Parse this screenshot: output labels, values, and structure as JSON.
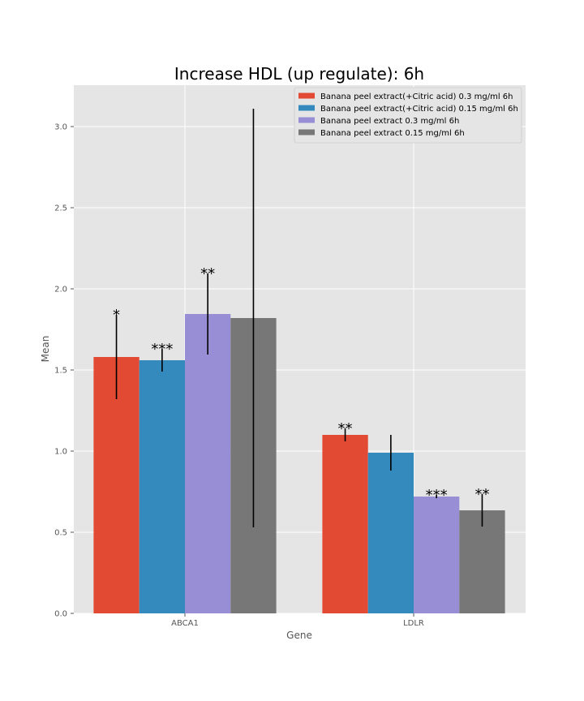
{
  "chart_data": {
    "type": "bar",
    "title": "Increase HDL (up regulate): 6h",
    "xlabel": "Gene",
    "ylabel": "Mean",
    "categories": [
      "ABCA1",
      "LDLR"
    ],
    "ylim": [
      0,
      3.25
    ],
    "yticks": [
      0.0,
      0.5,
      1.0,
      1.5,
      2.0,
      2.5,
      3.0
    ],
    "ytick_labels": [
      "0.0",
      "0.5",
      "1.0",
      "1.5",
      "2.0",
      "2.5",
      "3.0"
    ],
    "grid": true,
    "legend_position": "top-right",
    "series": [
      {
        "name": "Banana peel extract(+Citric acid) 0.3 mg/ml 6h",
        "color": "#E24A33",
        "values": [
          1.58,
          1.1
        ],
        "errors": [
          0.26,
          0.04
        ],
        "significance": [
          "*",
          "**"
        ]
      },
      {
        "name": "Banana peel extract(+Citric acid) 0.15 mg/ml 6h",
        "color": "#348ABD",
        "values": [
          1.56,
          0.99
        ],
        "errors": [
          0.07,
          0.11
        ],
        "significance": [
          "***",
          ""
        ]
      },
      {
        "name": "Banana peel extract 0.3 mg/ml 6h",
        "color": "#988ED5",
        "values": [
          1.845,
          0.72
        ],
        "errors": [
          0.25,
          0.01
        ],
        "significance": [
          "**",
          "***"
        ]
      },
      {
        "name": "Banana peel extract 0.15 mg/ml 6h",
        "color": "#777777",
        "values": [
          1.82,
          0.635
        ],
        "errors": [
          1.29,
          0.1
        ],
        "significance": [
          "",
          "**"
        ]
      }
    ]
  }
}
